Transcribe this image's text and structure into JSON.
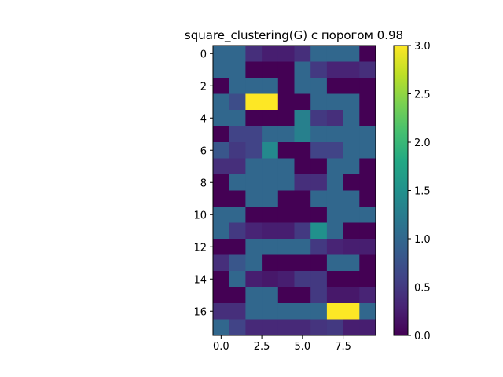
{
  "chart_data": {
    "type": "heatmap",
    "title": "square_clustering(G) с порогом 0.98",
    "xlabel": "",
    "ylabel": "",
    "n_rows": 18,
    "n_cols": 10,
    "x_ticks": [
      0,
      2.5,
      5,
      7.5
    ],
    "x_tick_labels": [
      "0.0",
      "2.5",
      "5.0",
      "7.5"
    ],
    "y_ticks": [
      0,
      2,
      4,
      6,
      8,
      10,
      12,
      14,
      16
    ],
    "y_tick_labels": [
      "0",
      "2",
      "4",
      "6",
      "8",
      "10",
      "12",
      "14",
      "16"
    ],
    "colorbar": {
      "min": 0.0,
      "max": 3.0,
      "colormap": "viridis",
      "ticks": [
        0.0,
        0.5,
        1.0,
        1.5,
        2.0,
        2.5,
        3.0
      ],
      "tick_labels": [
        "0.0",
        "0.5",
        "1.0",
        "1.5",
        "2.0",
        "2.5",
        "3.0"
      ]
    },
    "values": [
      [
        1.0,
        1.0,
        0.4,
        0.25,
        0.25,
        0.4,
        1.0,
        1.0,
        1.0,
        0.0
      ],
      [
        1.0,
        1.0,
        0.0,
        0.0,
        0.0,
        1.0,
        0.5,
        0.3,
        0.3,
        0.4
      ],
      [
        0.0,
        1.0,
        1.0,
        1.0,
        0.0,
        1.0,
        1.0,
        0.0,
        0.0,
        0.0
      ],
      [
        1.0,
        0.7,
        3.0,
        3.0,
        0.0,
        0.0,
        1.0,
        1.0,
        1.0,
        0.0
      ],
      [
        1.0,
        1.0,
        0.0,
        0.0,
        0.0,
        1.3,
        0.5,
        0.4,
        1.0,
        0.0
      ],
      [
        0.0,
        0.6,
        0.6,
        1.0,
        1.0,
        1.3,
        1.0,
        1.0,
        1.0,
        1.0
      ],
      [
        0.8,
        0.5,
        0.6,
        1.4,
        0.0,
        0.0,
        0.6,
        0.6,
        1.0,
        1.0
      ],
      [
        0.4,
        0.4,
        1.0,
        1.0,
        1.0,
        0.0,
        0.0,
        1.0,
        1.0,
        0.0
      ],
      [
        0.0,
        1.0,
        1.0,
        1.0,
        1.0,
        0.4,
        0.4,
        1.0,
        0.0,
        0.0
      ],
      [
        0.0,
        0.0,
        1.0,
        1.0,
        0.0,
        0.0,
        1.0,
        1.0,
        1.0,
        0.0
      ],
      [
        1.0,
        1.0,
        0.0,
        0.0,
        0.0,
        0.0,
        0.0,
        1.0,
        1.0,
        1.0
      ],
      [
        1.0,
        0.5,
        0.3,
        0.25,
        0.25,
        0.5,
        1.5,
        1.0,
        0.0,
        0.0
      ],
      [
        0.0,
        0.0,
        1.0,
        1.0,
        1.0,
        1.0,
        0.5,
        0.3,
        0.25,
        0.25
      ],
      [
        0.4,
        0.8,
        1.0,
        0.0,
        0.0,
        0.0,
        0.0,
        1.0,
        1.0,
        0.0
      ],
      [
        0.0,
        1.0,
        0.25,
        0.2,
        0.25,
        0.5,
        0.5,
        0.0,
        0.0,
        0.0
      ],
      [
        0.0,
        0.0,
        1.0,
        1.0,
        0.0,
        0.0,
        0.5,
        0.2,
        0.2,
        0.3
      ],
      [
        0.4,
        0.4,
        1.0,
        1.0,
        1.0,
        1.0,
        1.0,
        3.0,
        3.0,
        1.0
      ],
      [
        1.0,
        0.6,
        0.35,
        0.35,
        0.35,
        0.35,
        0.45,
        0.5,
        0.25,
        0.25
      ]
    ]
  }
}
